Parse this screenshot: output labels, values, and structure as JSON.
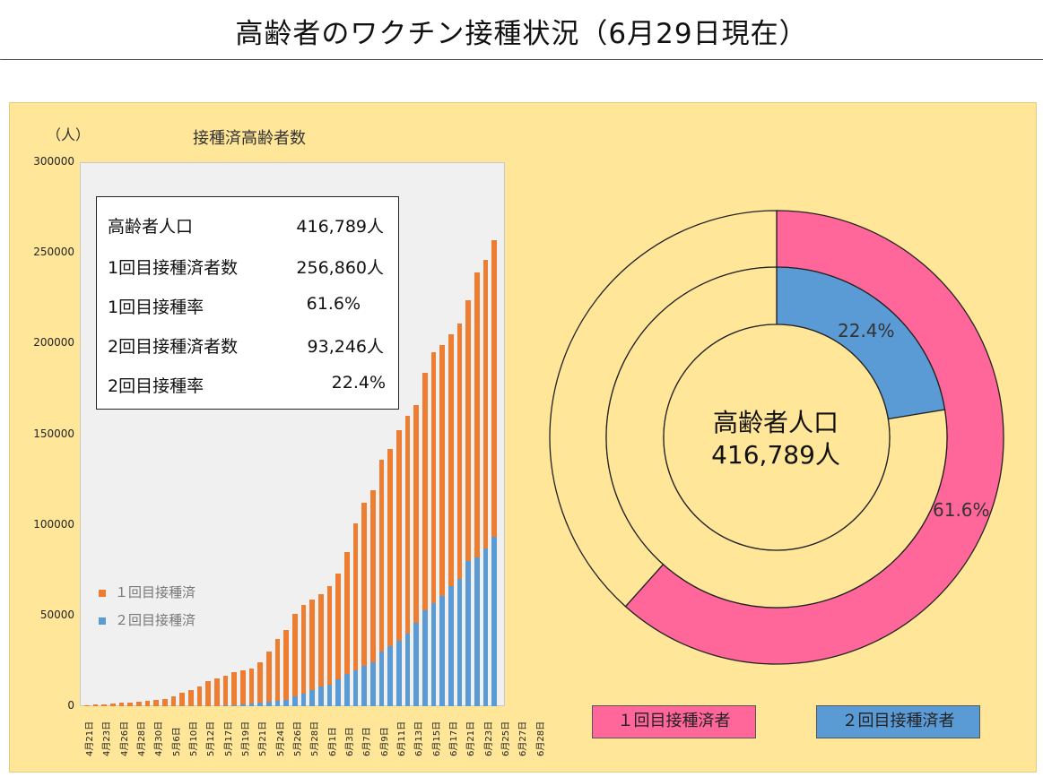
{
  "header": {
    "title": "高齢者のワクチン接種状況（6月29日現在）"
  },
  "stats": [
    {
      "label": "高齢者人口",
      "value": "416,789人"
    },
    {
      "label": "1回目接種済者数",
      "value": "256,860人"
    },
    {
      "label": "1回目接種率",
      "value": "61.6%"
    },
    {
      "label": "2回目接種済者数",
      "value": "93,246人"
    },
    {
      "label": "2回目接種率",
      "value": "22.4%"
    }
  ],
  "donut": {
    "center_line1": "高齢者人口",
    "center_line2": "416,789人",
    "inner_pct_label": "22.4%",
    "outer_pct_label": "61.6%",
    "legend_first": "１回目接種済者",
    "legend_second": "２回目接種済者"
  },
  "colors": {
    "first_dose_bar": "#ed7d31",
    "second_dose_bar": "#5b9bd5",
    "first_dose_ring": "#ff6699",
    "second_dose_ring": "#5b9bd5",
    "panel_bg": "#ffe699"
  },
  "chart_data": [
    {
      "type": "bar",
      "title": "接種済高齢者数",
      "ylabel": "（人）",
      "ylim": [
        0,
        300000
      ],
      "yticks": [
        "0",
        "50000",
        "100000",
        "150000",
        "200000",
        "250000",
        "300000"
      ],
      "x_tick_labels": [
        "4月21日",
        "4月23日",
        "4月26日",
        "4月28日",
        "4月30日",
        "5月6日",
        "5月10日",
        "5月12日",
        "5月17日",
        "5月19日",
        "5月21日",
        "5月24日",
        "5月26日",
        "5月28日",
        "6月1日",
        "6月3日",
        "6月7日",
        "6月9日",
        "6月11日",
        "6月13日",
        "6月15日",
        "6月17日",
        "6月21日",
        "6月23日",
        "6月25日",
        "6月27日",
        "6月28日"
      ],
      "bars_per_tick": 2,
      "series": [
        {
          "name": "１回目接種済",
          "values": [
            500,
            800,
            1000,
            1300,
            1800,
            2200,
            2600,
            3000,
            3400,
            3800,
            5500,
            7500,
            9000,
            11000,
            14000,
            15500,
            17000,
            19000,
            20000,
            21000,
            24000,
            30000,
            37000,
            42000,
            51000,
            56000,
            59000,
            62000,
            66000,
            73000,
            85000,
            101000,
            112000,
            119000,
            136000,
            142000,
            152000,
            160000,
            166000,
            184000,
            195000,
            199000,
            205000,
            211000,
            224000,
            239000,
            246000,
            256860
          ]
        },
        {
          "name": "２回目接種済",
          "values": [
            0,
            0,
            0,
            0,
            0,
            0,
            0,
            0,
            0,
            0,
            0,
            0,
            0,
            0,
            0,
            0,
            300,
            600,
            1000,
            1500,
            2000,
            2500,
            3000,
            3500,
            5500,
            7000,
            9000,
            11000,
            12000,
            15000,
            18000,
            20000,
            22000,
            24000,
            30000,
            33000,
            36000,
            40000,
            46000,
            53000,
            57000,
            61000,
            66000,
            70000,
            80000,
            82000,
            87000,
            93246
          ]
        }
      ]
    },
    {
      "type": "pie",
      "title": "",
      "series": [
        {
          "name": "１回目接種済者",
          "values": [
            61.6,
            38.4
          ]
        },
        {
          "name": "２回目接種済者",
          "values": [
            22.4,
            77.6
          ]
        }
      ]
    }
  ]
}
